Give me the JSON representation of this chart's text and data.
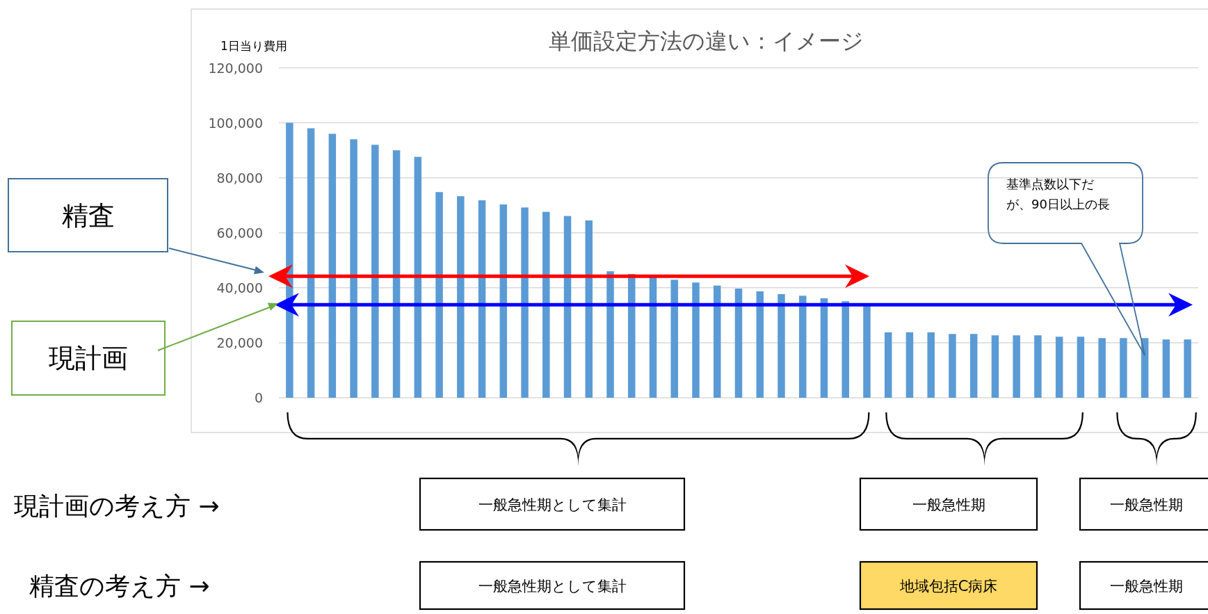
{
  "chart_data": {
    "type": "bar",
    "title": "単価設定方法の違い：イメージ",
    "ylabel": "1日当り費用",
    "categories": [
      null,
      null,
      null,
      null,
      null,
      null,
      null,
      null,
      null,
      null,
      null,
      null,
      null,
      null,
      null,
      null,
      null,
      null,
      null,
      null,
      null,
      null,
      null,
      null,
      null,
      null,
      null,
      null,
      null,
      null,
      null,
      null,
      null,
      null,
      null,
      null,
      null,
      null,
      null,
      null,
      null,
      null,
      null
    ],
    "values": [
      100000,
      98000,
      96000,
      94000,
      92000,
      90000,
      87600,
      74800,
      73300,
      71800,
      70300,
      69200,
      67600,
      66100,
      64500,
      46000,
      45000,
      44000,
      42900,
      41900,
      40800,
      39700,
      38700,
      37700,
      37100,
      36200,
      35100,
      33800,
      23800,
      23800,
      23800,
      23200,
      23200,
      22700,
      22700,
      22700,
      22200,
      22200,
      21700,
      21700,
      21700,
      21200,
      21200
    ],
    "color": "#5b9bd5",
    "ylim": [
      0,
      120000
    ],
    "yticks": [
      {
        "value": 0,
        "label": "0"
      },
      {
        "value": 20000,
        "label": "20,000"
      },
      {
        "value": 40000,
        "label": "40,000"
      },
      {
        "value": 60000,
        "label": "60,000"
      },
      {
        "value": 80000,
        "label": "80,000"
      },
      {
        "value": 100000,
        "label": "100,000"
      },
      {
        "value": 120000,
        "label": "120,000"
      }
    ],
    "grid": "y",
    "ref_lines": [
      {
        "axis": "y",
        "value": 44200,
        "color": "#ff0000"
      },
      {
        "axis": "y",
        "value": 33800,
        "color": "#0000ff"
      }
    ],
    "annotations": [
      "基準点数以下だが、90日以上の長",
      "精査",
      "現計画",
      "現計画の考え方 →",
      "一般急性期として集計",
      "一般急性期",
      "一般急性期",
      "精査の考え方 →",
      "一般急性期として集計",
      "地域包括C病床",
      "一般急性期"
    ]
  }
}
